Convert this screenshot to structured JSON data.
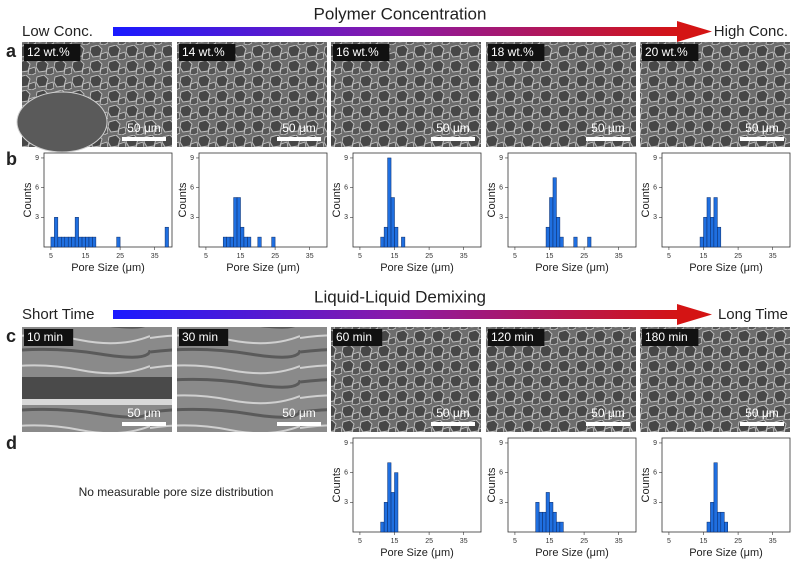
{
  "headers": [
    {
      "title": "Polymer Concentration",
      "left": "Low Conc.",
      "right": "High Conc."
    },
    {
      "title": "Liquid-Liquid Demixing",
      "left": "Short Time",
      "right": "Long Time"
    }
  ],
  "panel_labels": [
    "a",
    "b",
    "c",
    "d"
  ],
  "images": [
    {
      "label": "12 wt.%",
      "scale": "50 μm"
    },
    {
      "label": "14 wt.%",
      "scale": "50 μm"
    },
    {
      "label": "16 wt.%",
      "scale": "50 μm"
    },
    {
      "label": "18 wt.%",
      "scale": "50 μm"
    },
    {
      "label": "20 wt.%",
      "scale": "50 μm"
    },
    {
      "label": "10 min",
      "scale": "50 μm"
    },
    {
      "label": "30 min",
      "scale": "50 μm"
    },
    {
      "label": "60 min",
      "scale": "50 μm"
    },
    {
      "label": "120 min",
      "scale": "50 μm"
    },
    {
      "label": "180 min",
      "scale": "50 μm"
    }
  ],
  "note": "No measurable pore size distribution",
  "chart_data": [
    {
      "type": "histogram",
      "bins": [
        5,
        6,
        7,
        8,
        9,
        10,
        11,
        12,
        13,
        14,
        15,
        16,
        17,
        18,
        19,
        20,
        21,
        22,
        23,
        24,
        25,
        26,
        27,
        28,
        29,
        30,
        31,
        32,
        33,
        34,
        35,
        36,
        37,
        38,
        39
      ],
      "counts": [
        1,
        3,
        1,
        1,
        1,
        1,
        1,
        3,
        1,
        1,
        1,
        1,
        1,
        0,
        0,
        0,
        0,
        0,
        0,
        1,
        0,
        0,
        0,
        0,
        0,
        0,
        0,
        0,
        0,
        0,
        0,
        0,
        0,
        2
      ],
      "color": "#1f6fe0",
      "xlabel": "Pore Size (μm)",
      "ylabel": "Counts",
      "xlim": [
        3,
        40
      ],
      "ylim": [
        0,
        9.5
      ],
      "xticks": [
        5,
        15,
        25,
        35
      ],
      "yticks": [
        3,
        6,
        9
      ]
    },
    {
      "type": "histogram",
      "bins": [
        10,
        11,
        12,
        13,
        14,
        15,
        16,
        17,
        18,
        19,
        20,
        21,
        22,
        23,
        24,
        25
      ],
      "counts": [
        1,
        1,
        1,
        5,
        5,
        2,
        1,
        1,
        0,
        0,
        1,
        0,
        0,
        0,
        1
      ],
      "color": "#1f6fe0",
      "xlabel": "Pore Size (μm)",
      "ylabel": "Counts",
      "xlim": [
        3,
        40
      ],
      "ylim": [
        0,
        9.5
      ],
      "xticks": [
        5,
        15,
        25,
        35
      ],
      "yticks": [
        3,
        6,
        9
      ]
    },
    {
      "type": "histogram",
      "bins": [
        11,
        12,
        13,
        14,
        15,
        16,
        17,
        18
      ],
      "counts": [
        1,
        2,
        9,
        5,
        2,
        0,
        1
      ],
      "color": "#1f6fe0",
      "xlabel": "Pore Size (μm)",
      "ylabel": "Counts",
      "xlim": [
        3,
        40
      ],
      "ylim": [
        0,
        9.5
      ],
      "xticks": [
        5,
        15,
        25,
        35
      ],
      "yticks": [
        3,
        6,
        9
      ]
    },
    {
      "type": "histogram",
      "bins": [
        14,
        15,
        16,
        17,
        18,
        19,
        20,
        21,
        22,
        23,
        24,
        25,
        26,
        27
      ],
      "counts": [
        2,
        5,
        7,
        3,
        1,
        0,
        0,
        0,
        1,
        0,
        0,
        0,
        1
      ],
      "color": "#1f6fe0",
      "xlabel": "Pore Size (μm)",
      "ylabel": "Counts",
      "xlim": [
        3,
        40
      ],
      "ylim": [
        0,
        9.5
      ],
      "xticks": [
        5,
        15,
        25,
        35
      ],
      "yticks": [
        3,
        6,
        9
      ]
    },
    {
      "type": "histogram",
      "bins": [
        14,
        15,
        16,
        17,
        18,
        19,
        20
      ],
      "counts": [
        1,
        3,
        5,
        3,
        5,
        2
      ],
      "color": "#1f6fe0",
      "xlabel": "Pore Size (μm)",
      "ylabel": "Counts",
      "xlim": [
        3,
        40
      ],
      "ylim": [
        0,
        9.5
      ],
      "xticks": [
        5,
        15,
        25,
        35
      ],
      "yticks": [
        3,
        6,
        9
      ]
    },
    {
      "type": "histogram",
      "bins": [
        11,
        12,
        13,
        14,
        15,
        16
      ],
      "counts": [
        1,
        3,
        7,
        4,
        6
      ],
      "color": "#1f6fe0",
      "xlabel": "Pore Size (μm)",
      "ylabel": "Counts",
      "xlim": [
        3,
        40
      ],
      "ylim": [
        0,
        9.5
      ],
      "xticks": [
        5,
        15,
        25,
        35
      ],
      "yticks": [
        3,
        6,
        9
      ]
    },
    {
      "type": "histogram",
      "bins": [
        11,
        12,
        13,
        14,
        15,
        16,
        17,
        18,
        19
      ],
      "counts": [
        3,
        2,
        2,
        4,
        3,
        2,
        1,
        1
      ],
      "color": "#1f6fe0",
      "xlabel": "Pore Size (μm)",
      "ylabel": "Counts",
      "xlim": [
        3,
        40
      ],
      "ylim": [
        0,
        9.5
      ],
      "xticks": [
        5,
        15,
        25,
        35
      ],
      "yticks": [
        3,
        6,
        9
      ]
    },
    {
      "type": "histogram",
      "bins": [
        16,
        17,
        18,
        19,
        20,
        21,
        22
      ],
      "counts": [
        1,
        3,
        7,
        2,
        2,
        1
      ],
      "color": "#1f6fe0",
      "xlabel": "Pore Size (μm)",
      "ylabel": "Counts",
      "xlim": [
        3,
        40
      ],
      "ylim": [
        0,
        9.5
      ],
      "xticks": [
        5,
        15,
        25,
        35
      ],
      "yticks": [
        3,
        6,
        9
      ]
    }
  ]
}
